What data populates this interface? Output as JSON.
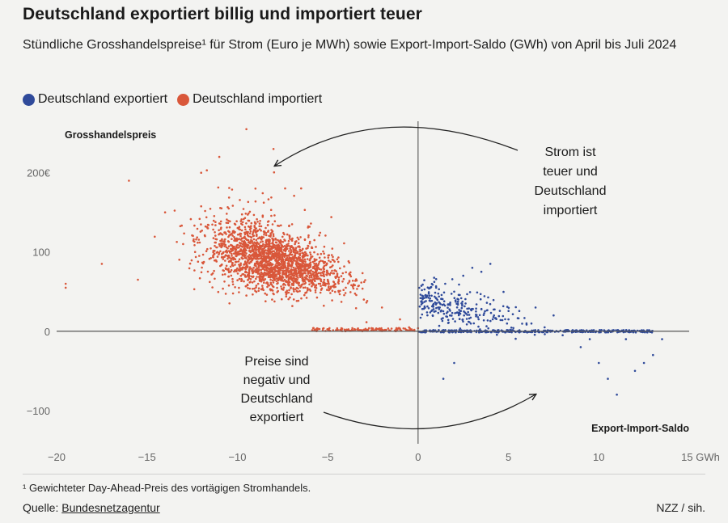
{
  "chart_data": {
    "type": "scatter",
    "title": "Deutschland exportiert billig und importiert teuer",
    "subtitle": "Stündliche Grosshandelspreise¹ für Strom (Euro je MWh) sowie Export-Import-Saldo (GWh) von April bis Juli 2024",
    "xlabel": "Export-Import-Saldo",
    "ylabel": "Grosshandelspreis",
    "xlim": [
      -20,
      15
    ],
    "ylim": [
      -140,
      265
    ],
    "x_ticks": [
      {
        "value": -20,
        "label": "−20"
      },
      {
        "value": -15,
        "label": "−15"
      },
      {
        "value": -10,
        "label": "−10"
      },
      {
        "value": -5,
        "label": "−5"
      },
      {
        "value": 0,
        "label": "0"
      },
      {
        "value": 5,
        "label": "5"
      },
      {
        "value": 10,
        "label": "10"
      },
      {
        "value": 15,
        "label": "15 GWh"
      }
    ],
    "y_ticks": [
      {
        "value": 200,
        "label": "200€"
      },
      {
        "value": 100,
        "label": "100"
      },
      {
        "value": 0,
        "label": "0"
      },
      {
        "value": -100,
        "label": "−100"
      }
    ],
    "series": [
      {
        "name": "Deutschland exportiert",
        "color": "#2f4a9a",
        "cluster": {
          "x_range": [
            0,
            13.5
          ],
          "approx_count": 700,
          "trend": "price falls from ~40 near 0 GWh to ~0 and below at 10–13 GWh, many points stacked on the 0 line"
        },
        "points": [
          [
            0.5,
            45
          ],
          [
            1,
            55
          ],
          [
            1.5,
            60
          ],
          [
            2,
            50
          ],
          [
            2.5,
            70
          ],
          [
            3,
            80
          ],
          [
            3.5,
            75
          ],
          [
            4,
            85
          ],
          [
            1.2,
            30
          ],
          [
            2.2,
            35
          ],
          [
            3.2,
            25
          ],
          [
            4.2,
            20
          ],
          [
            5,
            15
          ],
          [
            6,
            10
          ],
          [
            7,
            5
          ],
          [
            8,
            -5
          ],
          [
            9,
            -20
          ],
          [
            10,
            -40
          ],
          [
            10.5,
            -60
          ],
          [
            11,
            -80
          ],
          [
            12,
            -50
          ],
          [
            13,
            -30
          ],
          [
            1.4,
            -60
          ],
          [
            2,
            -40
          ],
          [
            7.5,
            20
          ],
          [
            6.5,
            30
          ],
          [
            9.5,
            -10
          ],
          [
            11.5,
            -10
          ],
          [
            12.5,
            -40
          ],
          [
            13.5,
            -10
          ]
        ]
      },
      {
        "name": "Deutschland importiert",
        "color": "#d9573a",
        "cluster": {
          "x_range": [
            -19.5,
            0
          ],
          "approx_count": 2100,
          "trend": "dense band ~80–100 €/MWh around −11 to −4 GWh, rising scatter up to ~250 €/MWh around −9 GWh, tapering to ~0 near 0 GWh"
        },
        "points": [
          [
            -19.5,
            60
          ],
          [
            -19.5,
            55
          ],
          [
            -17.5,
            85
          ],
          [
            -16,
            190
          ],
          [
            -15.5,
            65
          ],
          [
            -14,
            150
          ],
          [
            -13,
            110
          ],
          [
            -12,
            200
          ],
          [
            -11,
            220
          ],
          [
            -10,
            100
          ],
          [
            -9.5,
            255
          ],
          [
            -9,
            180
          ],
          [
            -8,
            230
          ],
          [
            -8,
            120
          ],
          [
            -7,
            90
          ],
          [
            -6,
            70
          ],
          [
            -5,
            60
          ],
          [
            -4,
            55
          ],
          [
            -3,
            40
          ],
          [
            -2,
            30
          ],
          [
            -1,
            15
          ],
          [
            -0.5,
            5
          ]
        ]
      }
    ],
    "annotations": [
      {
        "text": "Strom ist teuer und Deutschland importiert",
        "arrow_from": [
          5.5,
          230
        ],
        "arrow_to": [
          -8,
          210
        ]
      },
      {
        "text": "Preise sind negativ und Deutschland exportiert",
        "arrow_from": [
          -5,
          -100
        ],
        "arrow_to": [
          6.5,
          -78
        ]
      }
    ],
    "grid": false,
    "legend_position": "top-left"
  },
  "legend": {
    "items": [
      {
        "label": "Deutschland exportiert",
        "color": "#2f4a9a"
      },
      {
        "label": "Deutschland importiert",
        "color": "#d9573a"
      }
    ]
  },
  "annotations": {
    "top": [
      "Strom ist",
      "teuer und",
      "Deutschland",
      "importiert"
    ],
    "bottom": [
      "Preise sind",
      "negativ und",
      "Deutschland",
      "exportiert"
    ]
  },
  "footer": {
    "footnote": "¹ Gewichteter Day-Ahead-Preis des vortägigen Stromhandels.",
    "source_prefix": "Quelle: ",
    "source_link": "Bundesnetzagentur",
    "credit": "NZZ / sih."
  }
}
